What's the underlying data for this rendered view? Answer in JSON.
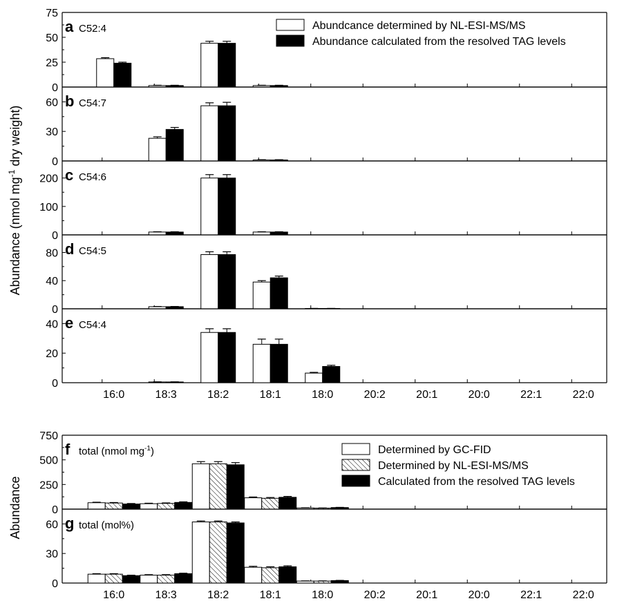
{
  "figure": {
    "ylabel_top": "Abundance (nmol mg",
    "ylabel_top_sup": "-1",
    "ylabel_top_tail": " dry weight)",
    "ylabel_bottom": "Abundance",
    "categories": [
      "16:0",
      "18:3",
      "18:2",
      "18:1",
      "18:0",
      "20:2",
      "20:1",
      "20:0",
      "22:1",
      "22:0"
    ],
    "legend_top": [
      "Abundcance determined by NL-ESI-MS/MS",
      "Abundance calculated from the resolved TAG levels"
    ],
    "legend_bottom": [
      "Determined by GC-FID",
      "Determined by NL-ESI-MS/MS",
      "Calculated from the resolved TAG levels"
    ]
  },
  "chart_data": [
    {
      "type": "bar",
      "letter": "a",
      "title": "C52:4",
      "ylim": [
        0,
        75
      ],
      "yticks": [
        0,
        25,
        50,
        75
      ],
      "categories": [
        "16:0",
        "18:3",
        "18:2",
        "18:1",
        "18:0",
        "20:2",
        "20:1",
        "20:0",
        "22:1",
        "22:0"
      ],
      "series": [
        {
          "name": "Abundcance determined by NL-ESI-MS/MS",
          "style": "white",
          "values": [
            28.5,
            1.5,
            44,
            1.5,
            0,
            0,
            0,
            0,
            0,
            0
          ],
          "errors": [
            1,
            0.3,
            2,
            0.3,
            0,
            0,
            0,
            0,
            0,
            0
          ]
        },
        {
          "name": "Abundance calculated from the resolved TAG levels",
          "style": "black",
          "values": [
            24,
            1.5,
            44,
            1.5,
            0,
            0,
            0,
            0,
            0,
            0
          ],
          "errors": [
            1,
            0.3,
            2,
            0.3,
            0,
            0,
            0,
            0,
            0,
            0
          ]
        }
      ]
    },
    {
      "type": "bar",
      "letter": "b",
      "title": "C54:7",
      "ylim": [
        0,
        75
      ],
      "yticks": [
        0,
        30,
        60
      ],
      "categories": [
        "16:0",
        "18:3",
        "18:2",
        "18:1",
        "18:0",
        "20:2",
        "20:1",
        "20:0",
        "22:1",
        "22:0"
      ],
      "series": [
        {
          "name": "Abundcance determined by NL-ESI-MS/MS",
          "style": "white",
          "values": [
            0,
            23,
            56,
            1,
            0,
            0,
            0,
            0,
            0,
            0
          ],
          "errors": [
            0,
            1.5,
            3,
            0.3,
            0,
            0,
            0,
            0,
            0,
            0
          ]
        },
        {
          "name": "Abundance calculated from the resolved TAG levels",
          "style": "black",
          "values": [
            0,
            32,
            56,
            1,
            0,
            0,
            0,
            0,
            0,
            0
          ],
          "errors": [
            0,
            2,
            3.5,
            0.3,
            0,
            0,
            0,
            0,
            0,
            0
          ]
        }
      ]
    },
    {
      "type": "bar",
      "letter": "c",
      "title": "C54:6",
      "ylim": [
        0,
        260
      ],
      "yticks": [
        0,
        100,
        200
      ],
      "categories": [
        "16:0",
        "18:3",
        "18:2",
        "18:1",
        "18:0",
        "20:2",
        "20:1",
        "20:0",
        "22:1",
        "22:0"
      ],
      "series": [
        {
          "name": "Abundcance determined by NL-ESI-MS/MS",
          "style": "white",
          "values": [
            0,
            10,
            200,
            10,
            0,
            0,
            0,
            0,
            0,
            0
          ],
          "errors": [
            0,
            1,
            12,
            1,
            0,
            0,
            0,
            0,
            0,
            0
          ]
        },
        {
          "name": "Abundance calculated from the resolved TAG levels",
          "style": "black",
          "values": [
            0,
            10,
            200,
            10,
            0,
            0,
            0,
            0,
            0,
            0
          ],
          "errors": [
            0,
            1,
            12,
            1,
            0,
            0,
            0,
            0,
            0,
            0
          ]
        }
      ]
    },
    {
      "type": "bar",
      "letter": "d",
      "title": "C54:5",
      "ylim": [
        0,
        105
      ],
      "yticks": [
        0,
        40,
        80
      ],
      "categories": [
        "16:0",
        "18:3",
        "18:2",
        "18:1",
        "18:0",
        "20:2",
        "20:1",
        "20:0",
        "22:1",
        "22:0"
      ],
      "series": [
        {
          "name": "Abundcance determined by NL-ESI-MS/MS",
          "style": "white",
          "values": [
            0,
            3,
            77,
            38,
            0.5,
            0,
            0,
            0,
            0,
            0
          ],
          "errors": [
            0,
            0.3,
            4,
            2,
            0.1,
            0,
            0,
            0,
            0,
            0
          ]
        },
        {
          "name": "Abundance calculated from the resolved TAG levels",
          "style": "black",
          "values": [
            0,
            3,
            77,
            44,
            0.5,
            0,
            0,
            0,
            0,
            0
          ],
          "errors": [
            0,
            0.3,
            4,
            2.5,
            0.1,
            0,
            0,
            0,
            0,
            0
          ]
        }
      ]
    },
    {
      "type": "bar",
      "letter": "e",
      "title": "C54:4",
      "ylim": [
        0,
        50
      ],
      "yticks": [
        0,
        20,
        40
      ],
      "categories": [
        "16:0",
        "18:3",
        "18:2",
        "18:1",
        "18:0",
        "20:2",
        "20:1",
        "20:0",
        "22:1",
        "22:0"
      ],
      "series": [
        {
          "name": "Abundcance determined by NL-ESI-MS/MS",
          "style": "white",
          "values": [
            0,
            0.5,
            34,
            26,
            6.5,
            0,
            0,
            0,
            0,
            0
          ],
          "errors": [
            0,
            0.1,
            2.5,
            3.5,
            0.5,
            0,
            0,
            0,
            0,
            0
          ]
        },
        {
          "name": "Abundance calculated from the resolved TAG levels",
          "style": "black",
          "values": [
            0,
            0.5,
            34,
            26,
            11,
            0,
            0,
            0,
            0,
            0
          ],
          "errors": [
            0,
            0.1,
            2.5,
            3.5,
            0.8,
            0,
            0,
            0,
            0,
            0
          ]
        }
      ]
    },
    {
      "type": "bar",
      "letter": "f",
      "title": "total (nmol mg",
      "title_sup": "-1",
      "title_tail": ")",
      "ylim": [
        0,
        750
      ],
      "yticks": [
        0,
        250,
        500,
        750
      ],
      "categories": [
        "16:0",
        "18:3",
        "18:2",
        "18:1",
        "18:0",
        "20:2",
        "20:1",
        "20:0",
        "22:1",
        "22:0"
      ],
      "series": [
        {
          "name": "Determined by GC-FID",
          "style": "white",
          "values": [
            65,
            55,
            460,
            115,
            12,
            0,
            0,
            0,
            0,
            0
          ],
          "errors": [
            5,
            5,
            22,
            8,
            2,
            0,
            0,
            0,
            0,
            0
          ]
        },
        {
          "name": "Determined by NL-ESI-MS/MS",
          "style": "hatch",
          "values": [
            62,
            58,
            460,
            110,
            10,
            0,
            0,
            0,
            0,
            0
          ],
          "errors": [
            5,
            5,
            22,
            8,
            2,
            0,
            0,
            0,
            0,
            0
          ]
        },
        {
          "name": "Calculated from the resolved TAG levels",
          "style": "black",
          "values": [
            52,
            68,
            450,
            120,
            16,
            0,
            0,
            0,
            0,
            0
          ],
          "errors": [
            5,
            6,
            22,
            9,
            2,
            0,
            0,
            0,
            0,
            0
          ]
        }
      ]
    },
    {
      "type": "bar",
      "letter": "g",
      "title": "total (mol%)",
      "ylim": [
        0,
        75
      ],
      "yticks": [
        0,
        30,
        60
      ],
      "categories": [
        "16:0",
        "18:3",
        "18:2",
        "18:1",
        "18:0",
        "20:2",
        "20:1",
        "20:0",
        "22:1",
        "22:0"
      ],
      "series": [
        {
          "name": "Determined by GC-FID",
          "style": "white",
          "values": [
            9,
            8,
            62,
            16,
            2,
            0,
            0,
            0,
            0,
            0
          ],
          "errors": [
            0.5,
            0.5,
            1,
            1,
            0.2,
            0,
            0,
            0,
            0,
            0
          ]
        },
        {
          "name": "Determined by NL-ESI-MS/MS",
          "style": "hatch",
          "values": [
            9,
            8,
            62,
            15.5,
            2,
            0,
            0,
            0,
            0,
            0
          ],
          "errors": [
            0.5,
            0.5,
            1,
            1,
            0.2,
            0,
            0,
            0,
            0,
            0
          ]
        },
        {
          "name": "Calculated from the resolved TAG levels",
          "style": "black",
          "values": [
            7.5,
            9.5,
            61,
            16.5,
            2.5,
            0,
            0,
            0,
            0,
            0
          ],
          "errors": [
            0.5,
            0.5,
            1,
            1,
            0.2,
            0,
            0,
            0,
            0,
            0
          ]
        }
      ]
    }
  ]
}
